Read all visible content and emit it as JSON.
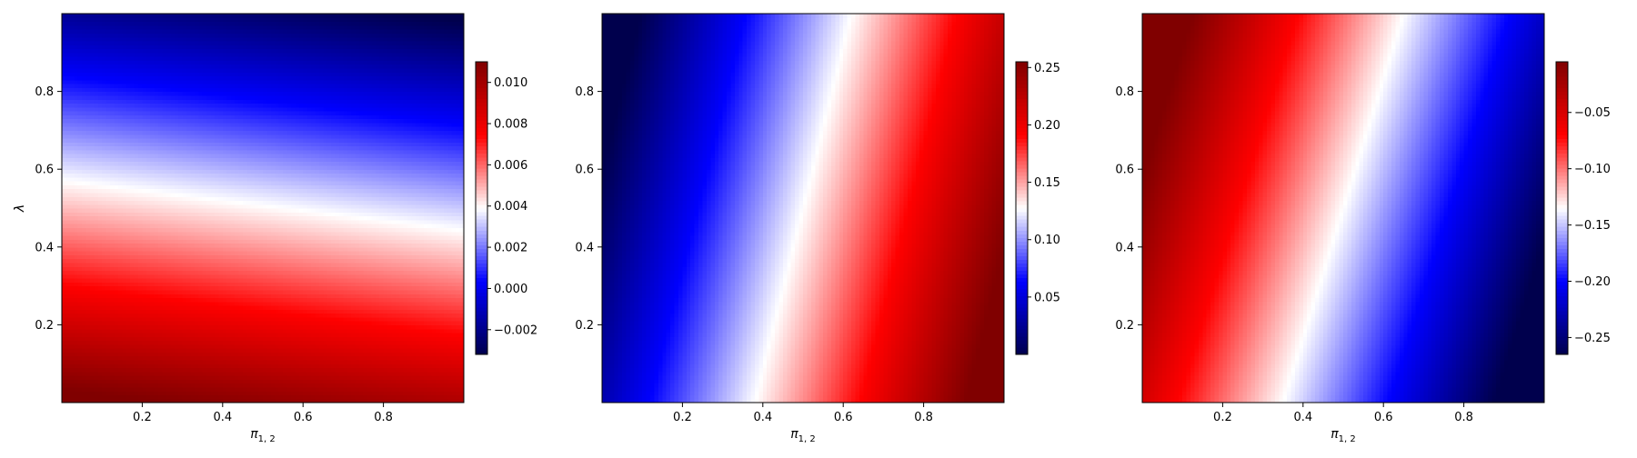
{
  "chart_data": [
    {
      "type": "heatmap",
      "title": "",
      "xlabel_base": "π",
      "xlabel_sub": "1, 2",
      "ylabel": "λ",
      "xlim": [
        0,
        1
      ],
      "ylim": [
        0,
        1
      ],
      "xticks": [
        "0.2",
        "0.4",
        "0.6",
        "0.8"
      ],
      "yticks": [
        "0.2",
        "0.4",
        "0.6",
        "0.8"
      ],
      "colormap": "seismic",
      "colorbar": {
        "vmin": -0.0032,
        "vmax": 0.011,
        "ticks": [
          "−0.002",
          "0.000",
          "0.002",
          "0.004",
          "0.006",
          "0.008",
          "0.010"
        ]
      },
      "isoline_description": "value decreases upward; white contour tilts from λ≈0.56 at π=0 to λ≈0.43 at π=1",
      "field": {
        "center": 0.004,
        "slope_lambda": -0.0132,
        "slope_pi": -0.0017
      }
    },
    {
      "type": "heatmap",
      "title": "",
      "xlabel_base": "π",
      "xlabel_sub": "1, 2",
      "ylabel": "",
      "xlim": [
        0,
        1
      ],
      "ylim": [
        0,
        1
      ],
      "xticks": [
        "0.2",
        "0.4",
        "0.6",
        "0.8"
      ],
      "yticks": [
        "0.2",
        "0.4",
        "0.6",
        "0.8"
      ],
      "colormap": "seismic",
      "colorbar": {
        "vmin": 0.0,
        "vmax": 0.255,
        "ticks": [
          "0.05",
          "0.10",
          "0.15",
          "0.20",
          "0.25"
        ]
      },
      "isoline_description": "value increases rightward; white contour tilts from π≈0.48 at λ=0 to π≈0.72 at λ=1",
      "field": {
        "center": 0.1275,
        "slope_pi": 0.2436,
        "slope_lambda": -0.0585
      }
    },
    {
      "type": "heatmap",
      "title": "",
      "xlabel_base": "π",
      "xlabel_sub": "1, 2",
      "ylabel": "",
      "xlim": [
        0,
        1
      ],
      "ylim": [
        0,
        1
      ],
      "xticks": [
        "0.2",
        "0.4",
        "0.6",
        "0.8"
      ],
      "yticks": [
        "0.2",
        "0.4",
        "0.6",
        "0.8"
      ],
      "colormap": "seismic",
      "colorbar": {
        "vmin": -0.265,
        "vmax": -0.005,
        "ticks": [
          "−0.25",
          "−0.20",
          "−0.15",
          "−0.10",
          "−0.05"
        ]
      },
      "isoline_description": "value decreases rightward; white contour tilts from π≈0.46 at λ=0 to π≈0.76 at λ=1",
      "field": {
        "center": -0.135,
        "slope_pi": -0.248,
        "slope_lambda": 0.0744
      }
    }
  ]
}
